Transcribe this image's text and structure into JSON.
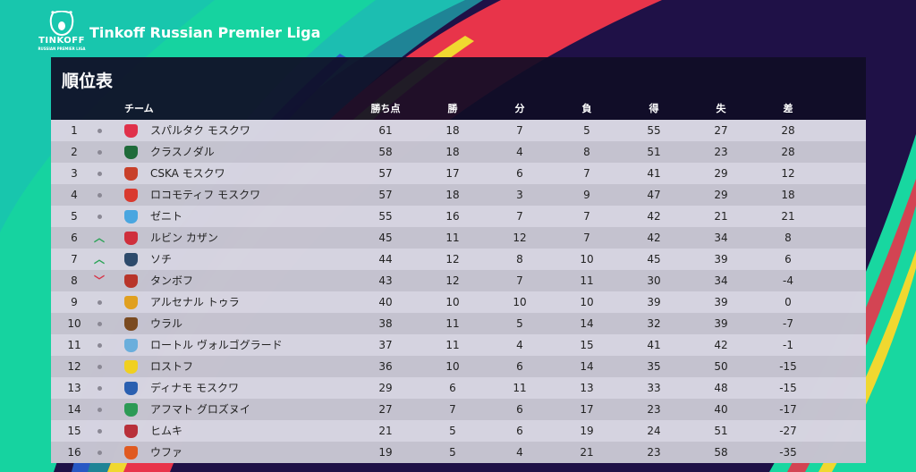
{
  "header": {
    "league_title": "Tinkoff Russian Premier Liga",
    "logo_text": "TINKOFF",
    "logo_subtext": "RUSSIAN PREMIER LIGA"
  },
  "panel": {
    "title": "順位表"
  },
  "columns": {
    "team": "チーム",
    "pts": "勝ち点",
    "w": "勝",
    "d": "分",
    "l": "負",
    "gf": "得",
    "ga": "失",
    "gd": "差"
  },
  "colors": {
    "background": "#1f1147",
    "up": "#2aa356",
    "down": "#d63548"
  },
  "rows": [
    {
      "rank": "1",
      "trend": "same",
      "team": "スパルタク モスクワ",
      "crest": "#e0314a",
      "pts": "61",
      "w": "18",
      "d": "7",
      "l": "5",
      "gf": "55",
      "ga": "27",
      "gd": "28"
    },
    {
      "rank": "2",
      "trend": "same",
      "team": "クラスノダル",
      "crest": "#1f6b3a",
      "pts": "58",
      "w": "18",
      "d": "4",
      "l": "8",
      "gf": "51",
      "ga": "23",
      "gd": "28"
    },
    {
      "rank": "3",
      "trend": "same",
      "team": "CSKA モスクワ",
      "crest": "#c8402a",
      "pts": "57",
      "w": "17",
      "d": "6",
      "l": "7",
      "gf": "41",
      "ga": "29",
      "gd": "12"
    },
    {
      "rank": "4",
      "trend": "same",
      "team": "ロコモティフ モスクワ",
      "crest": "#d93a2f",
      "pts": "57",
      "w": "18",
      "d": "3",
      "l": "9",
      "gf": "47",
      "ga": "29",
      "gd": "18"
    },
    {
      "rank": "5",
      "trend": "same",
      "team": "ゼニト",
      "crest": "#4aa6e0",
      "pts": "55",
      "w": "16",
      "d": "7",
      "l": "7",
      "gf": "42",
      "ga": "21",
      "gd": "21"
    },
    {
      "rank": "6",
      "trend": "up",
      "team": "ルビン カザン",
      "crest": "#cf2f3c",
      "pts": "45",
      "w": "11",
      "d": "12",
      "l": "7",
      "gf": "42",
      "ga": "34",
      "gd": "8"
    },
    {
      "rank": "7",
      "trend": "up",
      "team": "ソチ",
      "crest": "#2d4a6b",
      "pts": "44",
      "w": "12",
      "d": "8",
      "l": "10",
      "gf": "45",
      "ga": "39",
      "gd": "6"
    },
    {
      "rank": "8",
      "trend": "down",
      "team": "タンボフ",
      "crest": "#b8352a",
      "pts": "43",
      "w": "12",
      "d": "7",
      "l": "11",
      "gf": "30",
      "ga": "34",
      "gd": "-4"
    },
    {
      "rank": "9",
      "trend": "same",
      "team": "アルセナル トゥラ",
      "crest": "#e0a020",
      "pts": "40",
      "w": "10",
      "d": "10",
      "l": "10",
      "gf": "39",
      "ga": "39",
      "gd": "0"
    },
    {
      "rank": "10",
      "trend": "same",
      "team": "ウラル",
      "crest": "#7a4a20",
      "pts": "38",
      "w": "11",
      "d": "5",
      "l": "14",
      "gf": "32",
      "ga": "39",
      "gd": "-7"
    },
    {
      "rank": "11",
      "trend": "same",
      "team": "ロートル ヴォルゴグラード",
      "crest": "#6aaedc",
      "pts": "37",
      "w": "11",
      "d": "4",
      "l": "15",
      "gf": "41",
      "ga": "42",
      "gd": "-1"
    },
    {
      "rank": "12",
      "trend": "same",
      "team": "ロストフ",
      "crest": "#f0d020",
      "pts": "36",
      "w": "10",
      "d": "6",
      "l": "14",
      "gf": "35",
      "ga": "50",
      "gd": "-15"
    },
    {
      "rank": "13",
      "trend": "same",
      "team": "ディナモ モスクワ",
      "crest": "#2a5fb0",
      "pts": "29",
      "w": "6",
      "d": "11",
      "l": "13",
      "gf": "33",
      "ga": "48",
      "gd": "-15"
    },
    {
      "rank": "14",
      "trend": "same",
      "team": "アフマト グロズヌイ",
      "crest": "#2c9a55",
      "pts": "27",
      "w": "7",
      "d": "6",
      "l": "17",
      "gf": "23",
      "ga": "40",
      "gd": "-17"
    },
    {
      "rank": "15",
      "trend": "same",
      "team": "ヒムキ",
      "crest": "#b8303a",
      "pts": "21",
      "w": "5",
      "d": "6",
      "l": "19",
      "gf": "24",
      "ga": "51",
      "gd": "-27"
    },
    {
      "rank": "16",
      "trend": "same",
      "team": "ウファ",
      "crest": "#e05a20",
      "pts": "19",
      "w": "5",
      "d": "4",
      "l": "21",
      "gf": "23",
      "ga": "58",
      "gd": "-35"
    }
  ]
}
